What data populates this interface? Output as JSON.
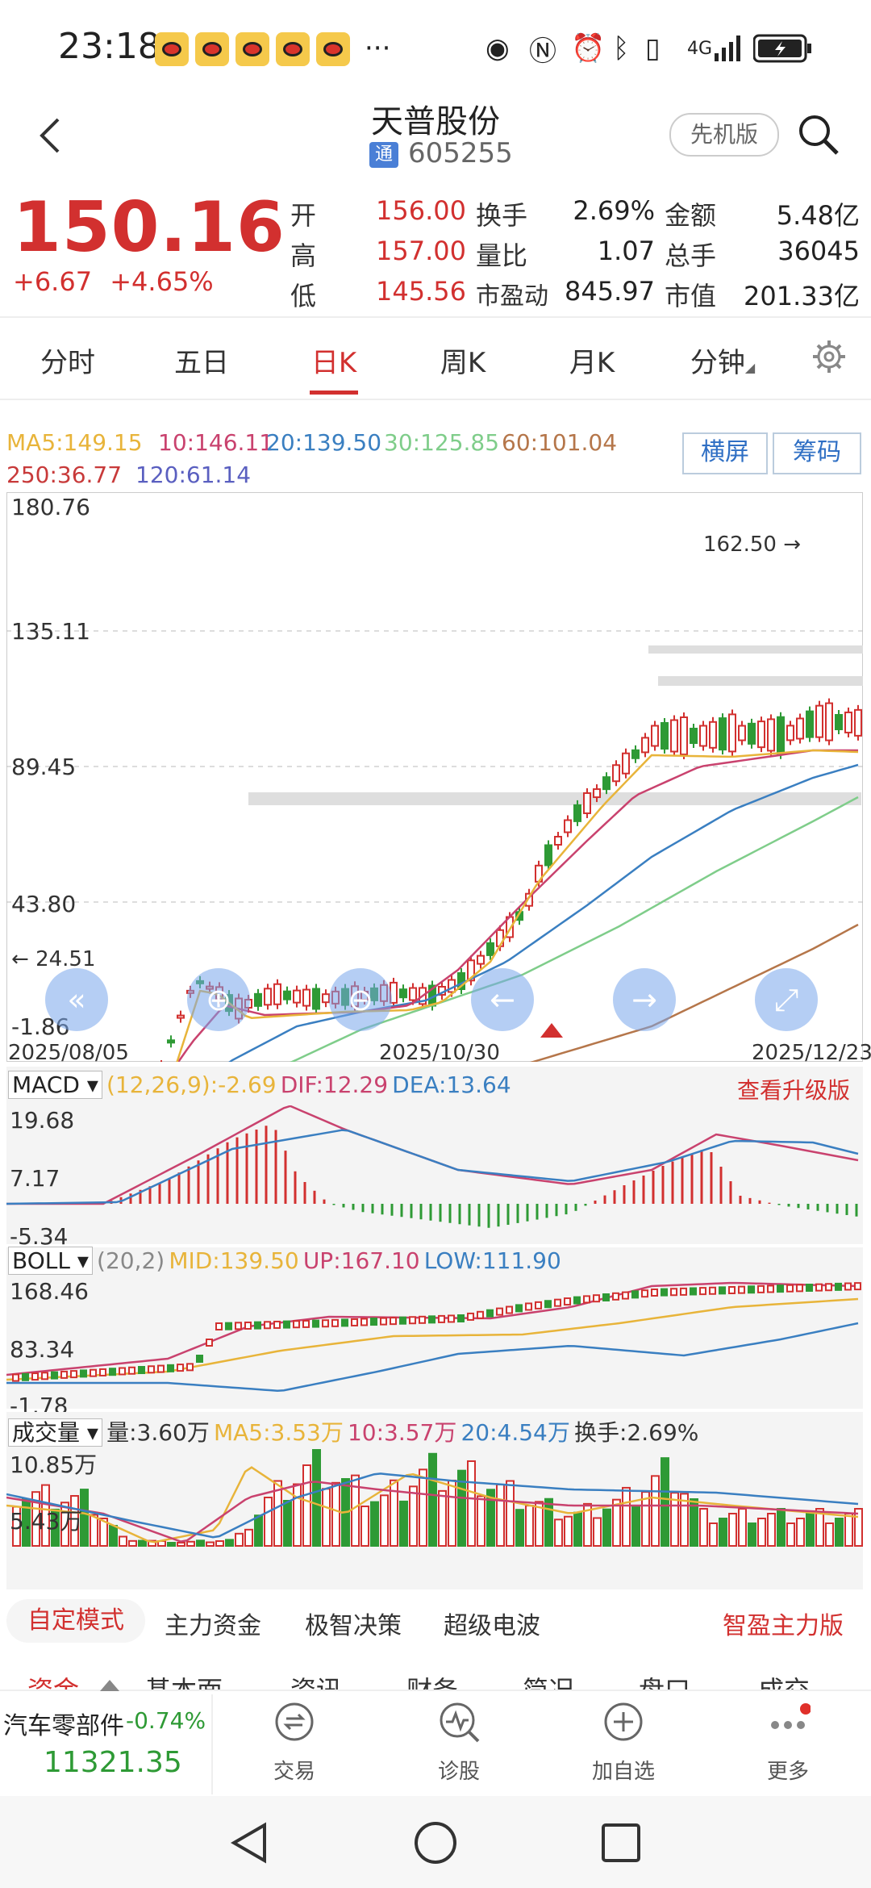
{
  "status": {
    "time": "23:18",
    "network": "4G"
  },
  "header": {
    "stock_name": "天普股份",
    "tong": "通",
    "stock_code": "605255",
    "pioneer_label": "先机版",
    "back_icon": "back-icon",
    "search_icon": "search-icon"
  },
  "quote": {
    "price": "150.16",
    "change": "+6.67",
    "change_pct": "+4.65%",
    "fields": [
      {
        "label": "开",
        "value": "156.00"
      },
      {
        "label": "高",
        "value": "157.00"
      },
      {
        "label": "低",
        "value": "145.56"
      },
      {
        "label": "换手",
        "value": "2.69%"
      },
      {
        "label": "量比",
        "value": "1.07"
      },
      {
        "label": "市盈动",
        "value": "845.97"
      },
      {
        "label": "金额",
        "value": "5.48亿"
      },
      {
        "label": "总手",
        "value": "36045"
      },
      {
        "label": "市值",
        "value": "201.33亿"
      }
    ]
  },
  "tabs": {
    "items": [
      "分时",
      "五日",
      "日K",
      "周K",
      "月K",
      "分钟"
    ],
    "active": "日K"
  },
  "ma": {
    "ma5": "MA5:149.15",
    "ma10": "10:146.11",
    "ma20": "20:139.50",
    "ma30": "30:125.85",
    "ma60": "60:101.04",
    "ma250": "250:36.77",
    "ma120": "120:61.14"
  },
  "buttons": {
    "landscape": "横屏",
    "chips": "筹码"
  },
  "kchart": {
    "y_ticks": [
      "180.76",
      "135.11",
      "89.45",
      "43.80",
      "-1.86"
    ],
    "dates": [
      "2025/08/05",
      "2025/10/30",
      "2025/12/23"
    ],
    "high_note": "162.50",
    "low_note": "24.51"
  },
  "macd": {
    "label": "MACD",
    "params": "(12,26,9):-2.69",
    "dif": "DIF:12.29",
    "dea": "DEA:13.64",
    "upgrade": "查看升级版",
    "y_ticks": [
      "19.68",
      "7.17",
      "-5.34"
    ]
  },
  "boll": {
    "label": "BOLL",
    "params": "(20,2)",
    "mid": "MID:139.50",
    "up": "UP:167.10",
    "low": "LOW:111.90",
    "y_ticks": [
      "168.46",
      "83.34",
      "-1.78"
    ]
  },
  "volume": {
    "label": "成交量",
    "vol": "量:3.60万",
    "ma5": "MA5:3.53万",
    "ma10": "10:3.57万",
    "ma20": "20:4.54万",
    "turnover": "换手:2.69%",
    "y_ticks": [
      "10.85万",
      "5.43万"
    ]
  },
  "modes": {
    "active": "自定模式",
    "items": [
      "主力资金",
      "极智决策",
      "超级电波"
    ],
    "right": "智盈主力版"
  },
  "subtabs": [
    "资金",
    "基本面",
    "资讯",
    "财务",
    "简况",
    "盘口",
    "成交"
  ],
  "bottom": {
    "sector_name": "汽车零部件",
    "sector_change": "-0.74%",
    "sector_value": "11321.35",
    "nav": [
      "交易",
      "诊股",
      "加自选",
      "更多"
    ]
  },
  "colors": {
    "up": "#d2302f",
    "down": "#2e9a35",
    "ma5": "#e8b43a",
    "ma10": "#c9426e",
    "ma20": "#3a7fc1",
    "ma30": "#7fcd8a",
    "ma60": "#b5764a",
    "ma120": "#5a5fc0",
    "ma250": "#c83a3a"
  }
}
